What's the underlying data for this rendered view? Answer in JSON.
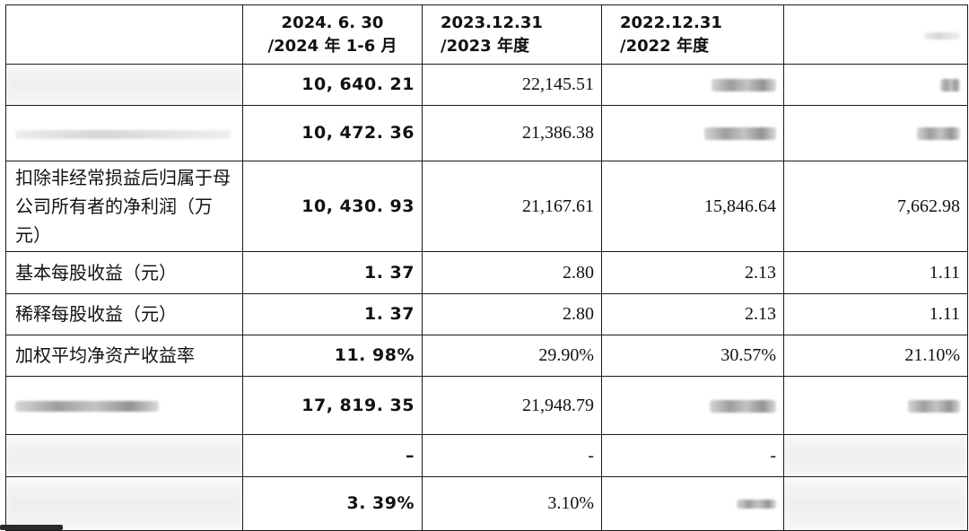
{
  "header": {
    "col1": [
      "2024. 6. 30",
      "/2024 年 1-6 月"
    ],
    "col2": [
      "2023.12.31",
      "/2023 年度"
    ],
    "col3": [
      "2022.12.31",
      "/2022 年度"
    ]
  },
  "rows": [
    {
      "label": "",
      "v1": "10, 640. 21",
      "v2": "22,145.51",
      "v3": "",
      "v4": ""
    },
    {
      "label": "",
      "v1": "10, 472. 36",
      "v2": "21,386.38",
      "v3": "",
      "v4": ""
    },
    {
      "label": "扣除非经常损益后归属于母公司所有者的净利润（万元）",
      "v1": "10, 430. 93",
      "v2": "21,167.61",
      "v3": "15,846.64",
      "v4": "7,662.98"
    },
    {
      "label": "基本每股收益（元）",
      "v1": "1. 37",
      "v2": "2.80",
      "v3": "2.13",
      "v4": "1.11"
    },
    {
      "label": "稀释每股收益（元）",
      "v1": "1. 37",
      "v2": "2.80",
      "v3": "2.13",
      "v4": "1.11"
    },
    {
      "label": "加权平均净资产收益率",
      "v1": "11. 98%",
      "v2": "29.90%",
      "v3": "30.57%",
      "v4": "21.10%"
    },
    {
      "label": "",
      "v1": "17, 819. 35",
      "v2": "21,948.79",
      "v3": "",
      "v4": ""
    },
    {
      "label": "",
      "v1": "–",
      "v2": "-",
      "v3": "-",
      "v4": ""
    },
    {
      "label": "",
      "v1": "3. 39%",
      "v2": "3.10%",
      "v3": "",
      "v4": ""
    }
  ]
}
